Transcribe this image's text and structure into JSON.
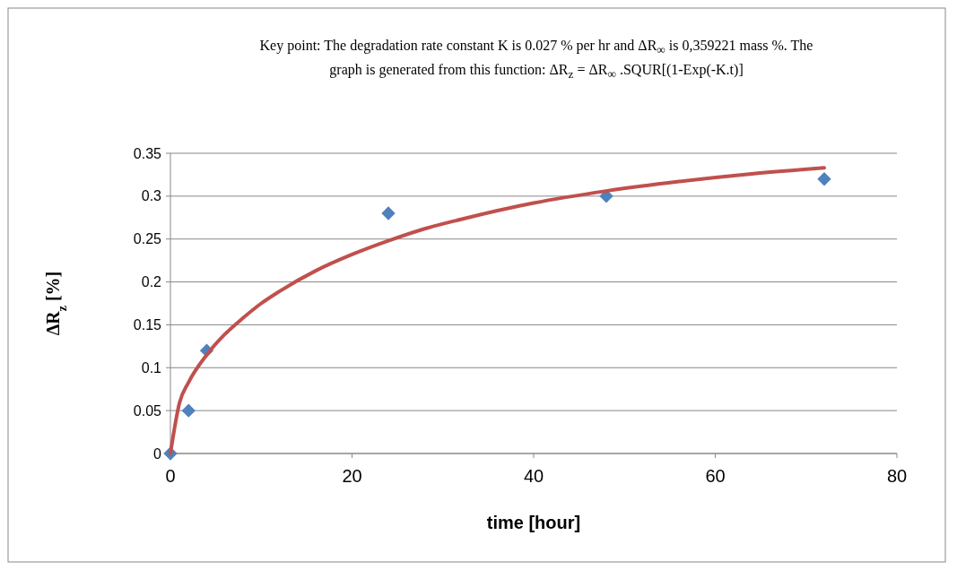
{
  "chart_data": {
    "type": "scatter",
    "title": "Key point: The  degradation rate constant K is 0.027 % per hr and ΔR$_{∞}$ is 0,359221 mass %. The graph is generated from this function: ΔR$_{z}$ = ΔR$_{∞}$ .SQUR[(1-Exp(-K.t)]",
    "xlabel": "time [hour]",
    "ylabel": "ΔR$_{z}$ [%]",
    "xlim": [
      0,
      80
    ],
    "xticks": [
      0,
      20,
      40,
      60,
      80
    ],
    "ylim": [
      0,
      0.35
    ],
    "yticks": [
      0,
      0.05,
      0.1,
      0.15,
      0.2,
      0.25,
      0.3,
      0.35
    ],
    "grid": "y",
    "series": [
      {
        "color": "#4f81bd",
        "marker": "diamond",
        "x": [
          0,
          2,
          4,
          24,
          48,
          72
        ],
        "values": [
          0,
          0.05,
          0.12,
          0.28,
          0.3,
          0.32
        ]
      },
      {
        "type": "line",
        "color": "#c0504d",
        "marker": "none",
        "line_style": "solid",
        "x": [
          0,
          1,
          2,
          4,
          6,
          8,
          10,
          12,
          16,
          20,
          24,
          28,
          32,
          40,
          48,
          56,
          64,
          72
        ],
        "values": [
          0,
          0.059,
          0.083,
          0.115,
          0.139,
          0.158,
          0.175,
          0.189,
          0.213,
          0.232,
          0.248,
          0.262,
          0.273,
          0.292,
          0.306,
          0.317,
          0.326,
          0.333
        ]
      }
    ]
  }
}
